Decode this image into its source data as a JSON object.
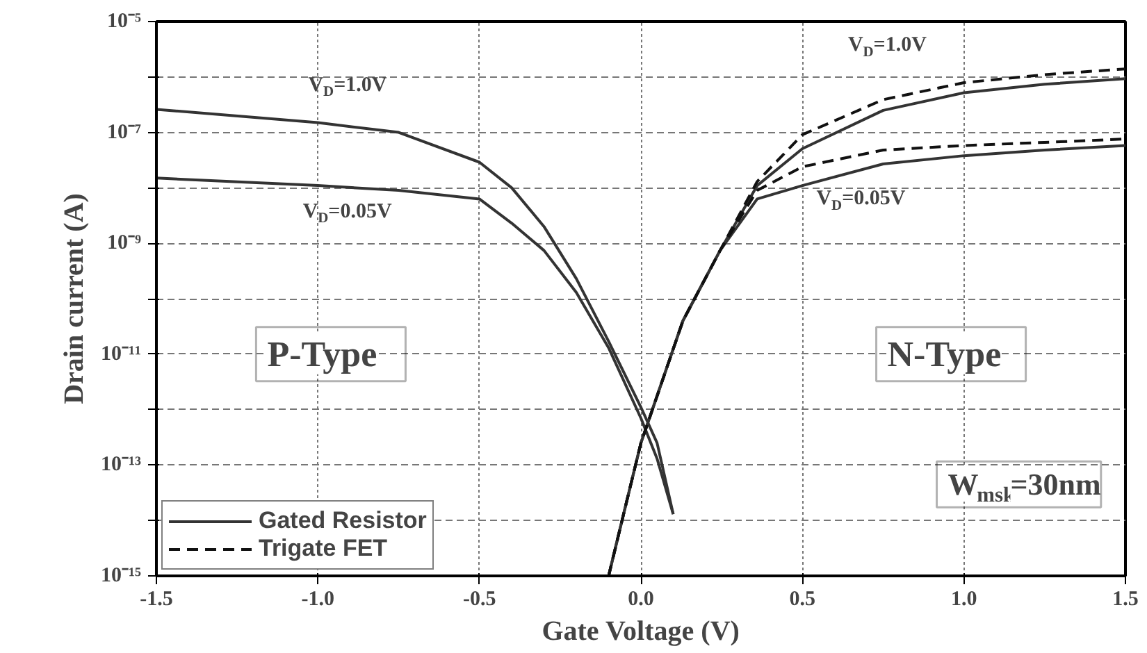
{
  "chart_data": {
    "type": "line",
    "xlabel": "Gate Voltage (V)",
    "ylabel": "Drain current (A)",
    "log": "y",
    "xlim": [
      -1.5,
      1.5
    ],
    "ylim": [
      1e-15,
      1e-05
    ],
    "xticks": [
      {
        "value": -1.5,
        "label": "-1.5"
      },
      {
        "value": -1.0,
        "label": "-1.0"
      },
      {
        "value": -0.5,
        "label": "-0.5"
      },
      {
        "value": 0,
        "label": "0.0"
      },
      {
        "value": 0.5,
        "label": "0.5"
      },
      {
        "value": 1.0,
        "label": "1.0"
      },
      {
        "value": 1.5,
        "label": "1.5"
      }
    ],
    "yticks": [
      {
        "value": 1e-15,
        "label": "10⁻¹⁵"
      },
      {
        "value": 1e-14,
        "label": null
      },
      {
        "value": 1e-13,
        "label": "10⁻¹³"
      },
      {
        "value": 1e-12,
        "label": null
      },
      {
        "value": 1e-11,
        "label": "10⁻¹¹"
      },
      {
        "value": 1e-10,
        "label": null
      },
      {
        "value": 1e-09,
        "label": "10⁻⁹"
      },
      {
        "value": 1e-08,
        "label": null
      },
      {
        "value": 1e-07,
        "label": "10⁻⁷"
      },
      {
        "value": 1e-06,
        "label": null
      },
      {
        "value": 1e-05,
        "label": "10⁻⁵"
      }
    ],
    "grid": true,
    "legend": "bottom left",
    "marker": "none",
    "series": [
      {
        "name": "Gated Resistor",
        "color": "#333333",
        "line_style": "solid",
        "x": [
          -1.5,
          -1.0,
          -0.75,
          -0.5,
          -0.4,
          -0.3,
          -0.2,
          -0.1,
          0,
          0.05,
          0.1
        ],
        "values": [
          2.6e-07,
          1.5e-07,
          1e-07,
          2.9e-08,
          1e-08,
          2e-09,
          2.3e-10,
          1.7e-11,
          1.1e-12,
          2.5e-13,
          1.3e-14
        ]
      },
      {
        "color": "#333333",
        "line_style": "solid",
        "x": [
          -1.5,
          -1.0,
          -0.75,
          -0.5,
          -0.4,
          -0.3,
          -0.2,
          -0.1,
          0,
          0.05,
          0.1
        ],
        "values": [
          1.5e-08,
          1.1e-08,
          9e-09,
          6.3e-09,
          2.3e-09,
          7.4e-10,
          1.3e-10,
          1.3e-11,
          7e-13,
          1.3e-13,
          1.3e-14
        ]
      },
      {
        "color": "#333333",
        "line_style": "solid",
        "x": [
          -0.1,
          -0.05,
          0,
          0.13,
          0.245,
          0.36,
          0.5,
          0.75,
          1.0,
          1.25,
          1.5
        ],
        "values": [
          1e-15,
          1.6e-14,
          2.5e-13,
          4e-11,
          7.4e-10,
          1.1e-08,
          5.1e-08,
          2.5e-07,
          5.2e-07,
          7.4e-07,
          9.3e-07
        ]
      },
      {
        "color": "#333333",
        "line_style": "solid",
        "x": [
          -0.1,
          -0.05,
          0,
          0.13,
          0.245,
          0.36,
          0.5,
          0.75,
          1.0,
          1.25,
          1.5
        ],
        "values": [
          1e-15,
          1.6e-14,
          2.5e-13,
          4e-11,
          7.4e-10,
          6.3e-09,
          1.1e-08,
          2.7e-08,
          3.8e-08,
          4.8e-08,
          5.8e-08
        ]
      },
      {
        "name": "Trigate FET",
        "color": "#111111",
        "line_style": "dashed",
        "x": [
          -0.1,
          -0.05,
          0,
          0.13,
          0.245,
          0.36,
          0.5,
          0.75,
          1.0,
          1.25,
          1.5
        ],
        "values": [
          1e-15,
          1.6e-14,
          2.5e-13,
          4e-11,
          7.4e-10,
          1.3e-08,
          9.1e-08,
          3.9e-07,
          7.9e-07,
          1.1e-06,
          1.4e-06
        ]
      },
      {
        "color": "#111111",
        "line_style": "dashed",
        "x": [
          -0.1,
          -0.05,
          0,
          0.13,
          0.245,
          0.36,
          0.5,
          0.75,
          1.0,
          1.25,
          1.5
        ],
        "values": [
          1e-15,
          1.6e-14,
          2.5e-13,
          4e-11,
          7.4e-10,
          9e-09,
          2.4e-08,
          4.8e-08,
          5.8e-08,
          6.6e-08,
          7.6e-08
        ]
      }
    ],
    "annotations": [
      "V$_{D}$=1.0V",
      "V$_{D}$=0.05V",
      "V$_{D}$=1.0V",
      "V$_{D}$=0.05V",
      "P-Type",
      "N-Type",
      "W$_{msk}$=30nm"
    ]
  }
}
